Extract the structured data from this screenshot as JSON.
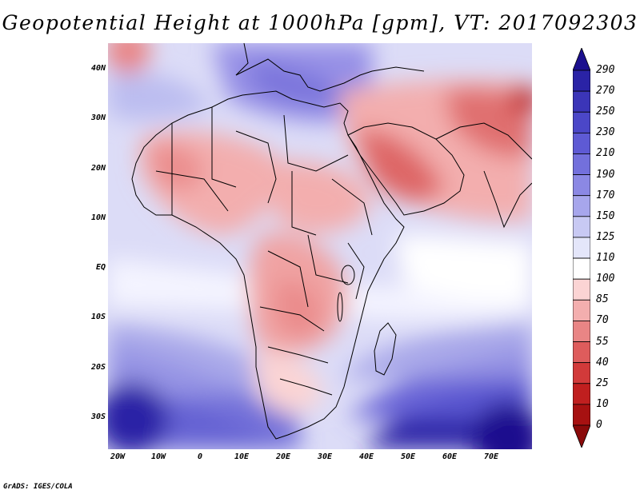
{
  "title": "Geopotential Height at 1000hPa [gpm], VT: 2017092303",
  "map": {
    "y_labels": [
      "40N",
      "30N",
      "20N",
      "10N",
      "EQ",
      "10S",
      "20S",
      "30S"
    ],
    "x_labels": [
      "20W",
      "10W",
      "0",
      "10E",
      "20E",
      "30E",
      "40E",
      "50E",
      "60E",
      "70E"
    ],
    "lon_range": [
      -22,
      80
    ],
    "lat_range": [
      -37,
      45
    ]
  },
  "colorbar": {
    "levels": [
      "290",
      "270",
      "250",
      "230",
      "210",
      "190",
      "170",
      "150",
      "125",
      "110",
      "100",
      "85",
      "70",
      "55",
      "40",
      "25",
      "10",
      "0"
    ],
    "colors": [
      "#1b0f8e",
      "#2a23a6",
      "#3b35b8",
      "#4b47c8",
      "#5e5ad4",
      "#7370dc",
      "#8b88e4",
      "#a7a6ec",
      "#c8c9f3",
      "#e4e6fa",
      "#ffffff",
      "#fbd4d4",
      "#f3aeae",
      "#e98585",
      "#de5c5c",
      "#d23a3a",
      "#c01f1f",
      "#a71111",
      "#8a0a0a"
    ]
  },
  "credit": "GrADS: IGES/COLA"
}
